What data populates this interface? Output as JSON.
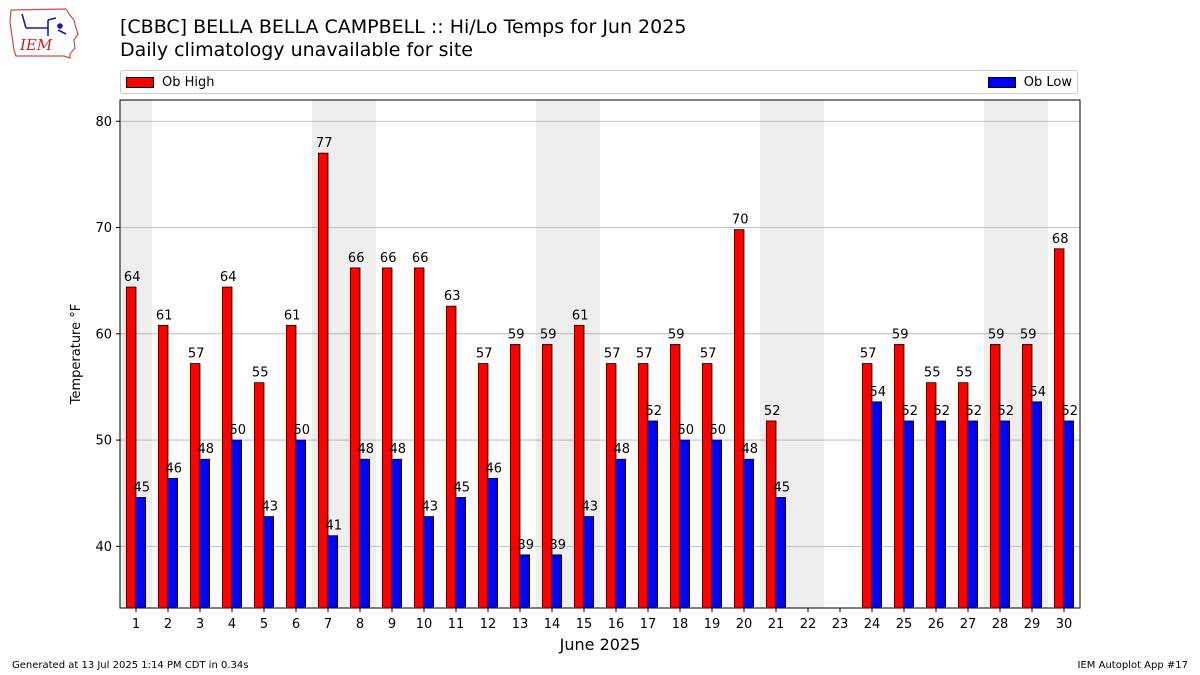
{
  "title_line1": "[CBBC] BELLA BELLA CAMPBELL :: Hi/Lo Temps for Jun 2025",
  "title_line2": "Daily climatology unavailable for site",
  "logo_text": "IEM",
  "legend": {
    "high_label": "Ob High",
    "low_label": "Ob Low",
    "high_color": "#ff0000",
    "low_color": "#0000ff"
  },
  "footer_left": "Generated at 13 Jul 2025 1:14 PM CDT in 0.34s",
  "footer_right": "IEM Autoplot App #17",
  "chart_data": {
    "type": "bar",
    "xlabel": "June 2025",
    "ylabel": "Temperature °F",
    "ylim": [
      34.2,
      82
    ],
    "yticks": [
      40,
      50,
      60,
      70,
      80
    ],
    "grid": true,
    "legend_placement": "top",
    "weekend_shading_color": "#eeeeee",
    "weekend_days": [
      1,
      7,
      8,
      14,
      15,
      21,
      22,
      28,
      29
    ],
    "categories": [
      "1",
      "2",
      "3",
      "4",
      "5",
      "6",
      "7",
      "8",
      "9",
      "10",
      "11",
      "12",
      "13",
      "14",
      "15",
      "16",
      "17",
      "18",
      "19",
      "20",
      "21",
      "22",
      "23",
      "24",
      "25",
      "26",
      "27",
      "28",
      "29",
      "30"
    ],
    "series": [
      {
        "name": "Ob High",
        "color": "#ff0000",
        "values": [
          64.4,
          60.8,
          57.2,
          64.4,
          55.4,
          60.8,
          77.0,
          66.2,
          66.2,
          66.2,
          62.6,
          57.2,
          59.0,
          59.0,
          60.8,
          57.2,
          57.2,
          59.0,
          57.2,
          69.8,
          51.8,
          null,
          null,
          57.2,
          59.0,
          55.4,
          55.4,
          59.0,
          59.0,
          68.0
        ],
        "labels": [
          "64",
          "61",
          "57",
          "64",
          "55",
          "61",
          "77",
          "66",
          "66",
          "66",
          "63",
          "57",
          "59",
          "59",
          "61",
          "57",
          "57",
          "59",
          "57",
          "70",
          "52",
          "",
          "",
          "57",
          "59",
          "55",
          "55",
          "59",
          "59",
          "68"
        ]
      },
      {
        "name": "Ob Low",
        "color": "#0000ff",
        "values": [
          44.6,
          46.4,
          48.2,
          50.0,
          42.8,
          50.0,
          41.0,
          48.2,
          48.2,
          42.8,
          44.6,
          46.4,
          39.2,
          39.2,
          42.8,
          48.2,
          51.8,
          50.0,
          50.0,
          48.2,
          44.6,
          null,
          null,
          53.6,
          51.8,
          51.8,
          51.8,
          51.8,
          53.6,
          51.8
        ],
        "labels": [
          "45",
          "46",
          "48",
          "50",
          "43",
          "50",
          "41",
          "48",
          "48",
          "43",
          "45",
          "46",
          "39",
          "39",
          "43",
          "48",
          "52",
          "50",
          "50",
          "48",
          "45",
          "",
          "",
          "54",
          "52",
          "52",
          "52",
          "52",
          "54",
          "52"
        ]
      }
    ]
  }
}
